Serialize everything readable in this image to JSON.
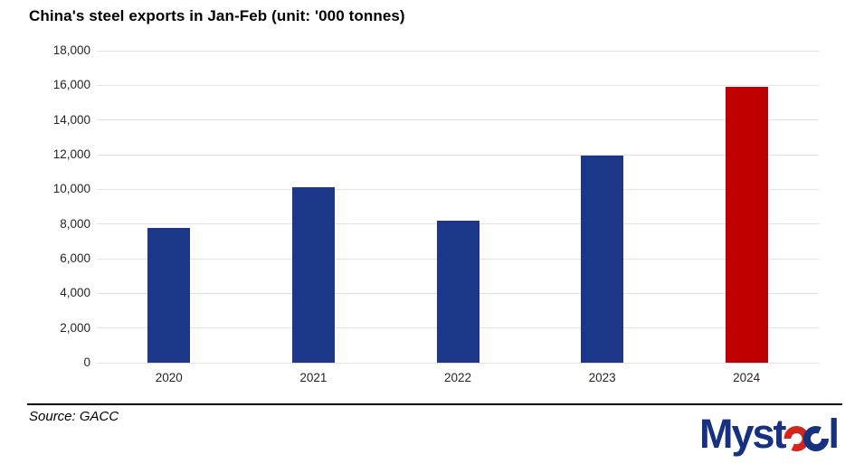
{
  "title": "China's steel exports in Jan-Feb (unit: '000 tonnes)",
  "source": "Source: GACC",
  "logo": {
    "prefix": "Myst",
    "suffix": "l",
    "blue": "#16317F",
    "red": "#D6251D",
    "alt": "Mysteel"
  },
  "chart_data": {
    "type": "bar",
    "title": "China's steel exports in Jan-Feb (unit: '000 tonnes)",
    "unit": "'000 tonnes",
    "categories": [
      "2020",
      "2021",
      "2022",
      "2023",
      "2024"
    ],
    "values": [
      7800,
      10100,
      8200,
      11950,
      15900
    ],
    "bar_colors": [
      "#1C3789",
      "#1C3789",
      "#1C3789",
      "#1C3789",
      "#C00000"
    ],
    "highlight_index": 4,
    "highlight_color": "#C00000",
    "default_bar_color": "#1C3789",
    "xlabel": "",
    "ylabel": "",
    "ylim": [
      0,
      18000
    ],
    "ytick_step": 2000,
    "ytick_labels": [
      "0",
      "2,000",
      "4,000",
      "6,000",
      "8,000",
      "10,000",
      "12,000",
      "14,000",
      "16,000",
      "18,000"
    ],
    "grid": true,
    "gridline_color": "#E2E2E2",
    "legend": "none"
  }
}
